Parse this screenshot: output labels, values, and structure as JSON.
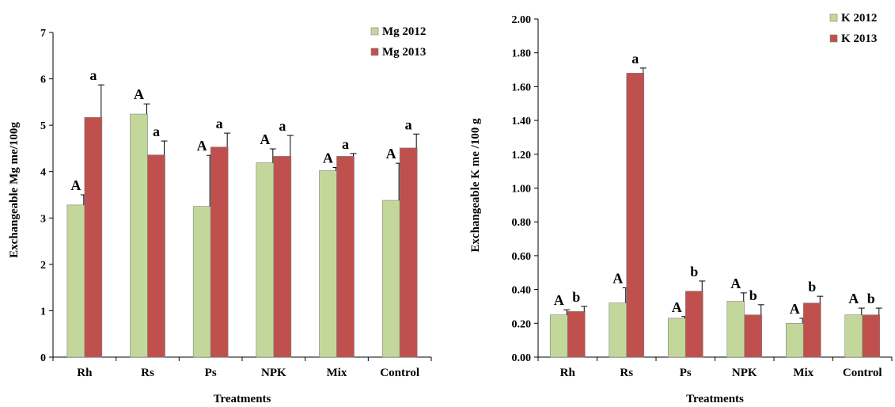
{
  "chart_data": [
    {
      "type": "bar",
      "categories": [
        "Rh",
        "Rs",
        "Ps",
        "NPK",
        "Mix",
        "Control"
      ],
      "xlabel": "Treatments",
      "ylabel": "Exchangeable Mg me/100g",
      "ylim": [
        0,
        7
      ],
      "yticks": [
        "0",
        "1",
        "2",
        "3",
        "4",
        "5",
        "6",
        "7"
      ],
      "legend_position": "top-right",
      "grid": false,
      "series": [
        {
          "name": "Mg 2012",
          "color": "#c4d79b",
          "values": [
            3.28,
            5.24,
            3.25,
            4.19,
            4.02,
            3.38
          ],
          "errors": [
            0.22,
            0.22,
            1.1,
            0.3,
            0.07,
            0.8
          ],
          "letters": [
            "A",
            "A",
            "A",
            "A",
            "A",
            "A"
          ]
        },
        {
          "name": "Mg 2013",
          "color": "#c0504d",
          "values": [
            5.17,
            4.36,
            4.53,
            4.33,
            4.33,
            4.51
          ],
          "errors": [
            0.7,
            0.3,
            0.3,
            0.45,
            0.06,
            0.3
          ],
          "letters": [
            "a",
            "a",
            "a",
            "a",
            "a",
            "a"
          ]
        }
      ]
    },
    {
      "type": "bar",
      "categories": [
        "Rh",
        "Rs",
        "Ps",
        "NPK",
        "Mix",
        "Control"
      ],
      "xlabel": "Treatments",
      "ylabel": "Exchangeable K me /100 g",
      "ylim": [
        0,
        2
      ],
      "yticks": [
        "0.00",
        "0.20",
        "0.40",
        "0.60",
        "0.80",
        "1.00",
        "1.20",
        "1.40",
        "1.60",
        "1.80",
        "2.00"
      ],
      "legend_position": "top-right",
      "grid": false,
      "series": [
        {
          "name": "K 2012",
          "color": "#c4d79b",
          "values": [
            0.25,
            0.32,
            0.23,
            0.33,
            0.2,
            0.25
          ],
          "errors": [
            0.03,
            0.09,
            0.01,
            0.05,
            0.03,
            0.04
          ],
          "letters": [
            "A",
            "A",
            "A",
            "A",
            "A",
            "A"
          ]
        },
        {
          "name": "K 2013",
          "color": "#c0504d",
          "values": [
            0.27,
            1.68,
            0.39,
            0.25,
            0.32,
            0.25
          ],
          "errors": [
            0.03,
            0.03,
            0.06,
            0.06,
            0.04,
            0.04
          ],
          "letters": [
            "b",
            "a",
            "b",
            "b",
            "b",
            "b"
          ]
        }
      ]
    }
  ]
}
